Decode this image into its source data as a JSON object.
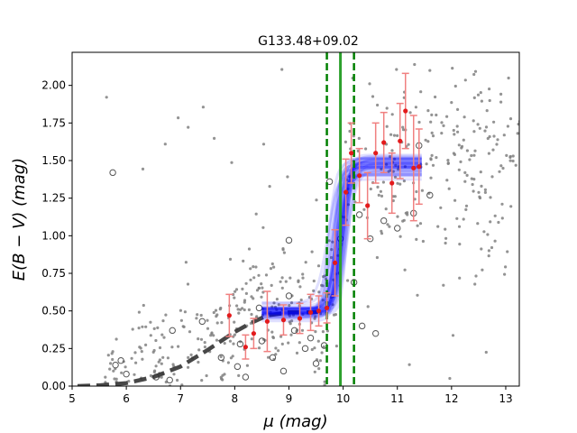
{
  "chart_data": {
    "type": "scatter",
    "title": "G133.48+09.02",
    "xlabel": "μ (mag)",
    "ylabel": "E(B − V) (mag)",
    "xlim": [
      5,
      13.25
    ],
    "ylim": [
      0,
      2.22
    ],
    "xticks": [
      5,
      6,
      7,
      8,
      9,
      10,
      11,
      12,
      13
    ],
    "xtick_labels": [
      "5",
      "6",
      "7",
      "8",
      "9",
      "10",
      "11",
      "12",
      "13"
    ],
    "yticks": [
      0,
      0.25,
      0.5,
      0.75,
      1.0,
      1.25,
      1.5,
      1.75,
      2.0
    ],
    "ytick_labels": [
      "0.00",
      "0.25",
      "0.50",
      "0.75",
      "1.00",
      "1.25",
      "1.50",
      "1.75",
      "2.00"
    ],
    "colors": {
      "background_stars": "#808080",
      "open_markers": "#555555",
      "red_points": "#e31a1c",
      "error_bars": "#f08080",
      "mcmc_curves": "#0000ff",
      "distance_line": "#2ca02c",
      "model_curve": "#333333"
    },
    "distance": {
      "mu": 9.95,
      "lower": 9.7,
      "upper": 10.2
    },
    "model_curve": {
      "pre_cloud_level": 0.49,
      "post_cloud_level": 1.47,
      "x": [
        5.1,
        5.5,
        6.0,
        6.5,
        7.0,
        7.5,
        8.0,
        8.3,
        8.6,
        9.0,
        9.4,
        9.7
      ],
      "y": [
        0.0,
        0.005,
        0.02,
        0.06,
        0.13,
        0.24,
        0.36,
        0.42,
        0.47,
        0.49,
        0.49,
        0.5
      ]
    },
    "mcmc_band": {
      "x_range": [
        8.5,
        11.45
      ],
      "pre_level": 0.49,
      "post_level": 1.47,
      "jump_center": 9.95
    },
    "red_points": [
      {
        "x": 7.9,
        "y": 0.47,
        "err": 0.14
      },
      {
        "x": 8.2,
        "y": 0.26,
        "err": 0.08
      },
      {
        "x": 8.35,
        "y": 0.35,
        "err": 0.1
      },
      {
        "x": 8.6,
        "y": 0.43,
        "err": 0.2
      },
      {
        "x": 8.9,
        "y": 0.44,
        "err": 0.1
      },
      {
        "x": 9.2,
        "y": 0.45,
        "err": 0.1
      },
      {
        "x": 9.4,
        "y": 0.49,
        "err": 0.12
      },
      {
        "x": 9.55,
        "y": 0.5,
        "err": 0.1
      },
      {
        "x": 9.7,
        "y": 0.52,
        "err": 0.1
      },
      {
        "x": 9.85,
        "y": 0.82,
        "err": 0.22
      },
      {
        "x": 10.05,
        "y": 1.29,
        "err": 0.22
      },
      {
        "x": 10.15,
        "y": 1.55,
        "err": 0.2
      },
      {
        "x": 10.3,
        "y": 1.4,
        "err": 0.18
      },
      {
        "x": 10.45,
        "y": 1.2,
        "err": 0.22
      },
      {
        "x": 10.6,
        "y": 1.55,
        "err": 0.2
      },
      {
        "x": 10.75,
        "y": 1.62,
        "err": 0.2
      },
      {
        "x": 10.9,
        "y": 1.35,
        "err": 0.2
      },
      {
        "x": 11.05,
        "y": 1.63,
        "err": 0.25
      },
      {
        "x": 11.15,
        "y": 1.83,
        "err": 0.25
      },
      {
        "x": 11.3,
        "y": 1.45,
        "err": 0.35
      },
      {
        "x": 11.4,
        "y": 1.46,
        "err": 0.25
      }
    ],
    "open_markers": [
      {
        "x": 5.75,
        "y": 1.42
      },
      {
        "x": 5.8,
        "y": 0.14
      },
      {
        "x": 5.9,
        "y": 0.17
      },
      {
        "x": 6.0,
        "y": 0.08
      },
      {
        "x": 6.55,
        "y": 0.06
      },
      {
        "x": 6.85,
        "y": 0.37
      },
      {
        "x": 6.8,
        "y": 0.04
      },
      {
        "x": 7.4,
        "y": 0.43
      },
      {
        "x": 7.75,
        "y": 0.19
      },
      {
        "x": 8.05,
        "y": 0.13
      },
      {
        "x": 8.2,
        "y": 0.06
      },
      {
        "x": 8.5,
        "y": 0.3
      },
      {
        "x": 8.7,
        "y": 0.19
      },
      {
        "x": 8.9,
        "y": 0.1
      },
      {
        "x": 9.0,
        "y": 0.6
      },
      {
        "x": 9.1,
        "y": 0.37
      },
      {
        "x": 9.3,
        "y": 0.25
      },
      {
        "x": 9.5,
        "y": 0.15
      },
      {
        "x": 9.65,
        "y": 0.27
      },
      {
        "x": 9.75,
        "y": 1.36
      },
      {
        "x": 9.95,
        "y": 0.98
      },
      {
        "x": 9.0,
        "y": 0.97
      },
      {
        "x": 10.2,
        "y": 0.69
      },
      {
        "x": 10.3,
        "y": 1.14
      },
      {
        "x": 10.5,
        "y": 0.98
      },
      {
        "x": 10.75,
        "y": 1.1
      },
      {
        "x": 11.0,
        "y": 1.05
      },
      {
        "x": 11.3,
        "y": 1.15
      },
      {
        "x": 11.6,
        "y": 1.27
      },
      {
        "x": 11.4,
        "y": 1.6
      },
      {
        "x": 10.35,
        "y": 0.4
      },
      {
        "x": 10.6,
        "y": 0.35
      },
      {
        "x": 9.4,
        "y": 0.32
      },
      {
        "x": 8.45,
        "y": 0.52
      },
      {
        "x": 8.1,
        "y": 0.28
      }
    ]
  }
}
